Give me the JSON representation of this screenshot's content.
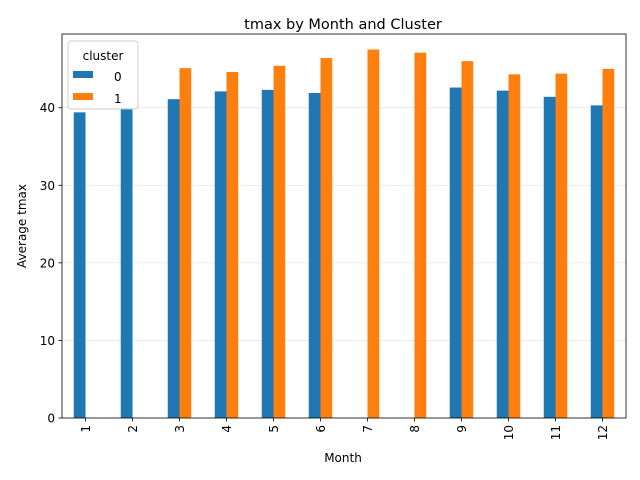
{
  "chart_data": {
    "type": "bar",
    "title": "tmax by Month and Cluster",
    "xlabel": "Month",
    "ylabel": "Average tmax",
    "categories": [
      "1",
      "2",
      "3",
      "4",
      "5",
      "6",
      "7",
      "8",
      "9",
      "10",
      "11",
      "12"
    ],
    "series": [
      {
        "name": "0",
        "color": "#1f77b4",
        "values": [
          39.4,
          40.0,
          41.1,
          42.1,
          42.3,
          41.9,
          null,
          null,
          42.6,
          42.2,
          41.4,
          40.3
        ]
      },
      {
        "name": "1",
        "color": "#ff7f0e",
        "values": [
          null,
          null,
          45.1,
          44.6,
          45.4,
          46.4,
          47.5,
          47.1,
          46.0,
          44.3,
          44.4,
          45.0
        ]
      }
    ],
    "ylim": [
      0,
      49.5
    ],
    "yticks": [
      0,
      10,
      20,
      30,
      40
    ],
    "grid": true,
    "legend": {
      "title": "cluster",
      "placement": "top-left"
    }
  }
}
